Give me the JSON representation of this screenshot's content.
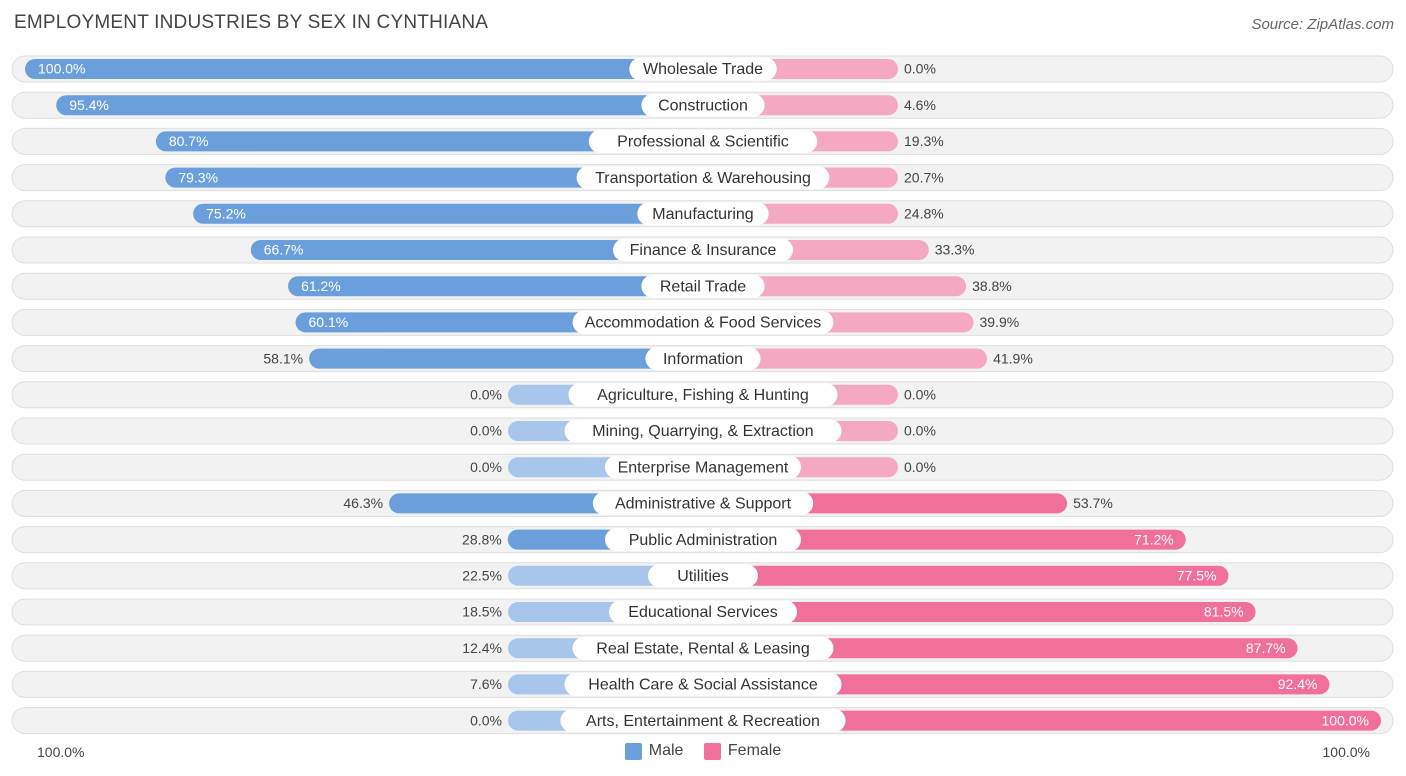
{
  "title": "EMPLOYMENT INDUSTRIES BY SEX IN CYNTHIANA",
  "source": "Source: ZipAtlas.com",
  "legend": {
    "male": "Male",
    "female": "Female"
  },
  "axis": {
    "left": "100.0%",
    "right": "100.0%"
  },
  "colors": {
    "male_strong": "#6a9fdc",
    "male_light": "#a8c6ec",
    "female_strong": "#f0709a",
    "female_light": "#f5a8c1",
    "track": "#f2f2f2",
    "track_border": "#dedede"
  },
  "chart_data": {
    "type": "bar",
    "orientation": "horizontal-diverging",
    "title": "EMPLOYMENT INDUSTRIES BY SEX IN CYNTHIANA",
    "xlim": [
      0,
      100
    ],
    "series_names": [
      "Male",
      "Female"
    ],
    "categories": [
      "Wholesale Trade",
      "Construction",
      "Professional & Scientific",
      "Transportation & Warehousing",
      "Manufacturing",
      "Finance & Insurance",
      "Retail Trade",
      "Accommodation & Food Services",
      "Information",
      "Agriculture, Fishing & Hunting",
      "Mining, Quarrying, & Extraction",
      "Enterprise Management",
      "Administrative & Support",
      "Public Administration",
      "Utilities",
      "Educational Services",
      "Real Estate, Rental & Leasing",
      "Health Care & Social Assistance",
      "Arts, Entertainment & Recreation"
    ],
    "male": [
      100.0,
      95.4,
      80.7,
      79.3,
      75.2,
      66.7,
      61.2,
      60.1,
      58.1,
      0.0,
      0.0,
      0.0,
      46.3,
      28.8,
      22.5,
      18.5,
      12.4,
      7.6,
      0.0
    ],
    "female": [
      0.0,
      4.6,
      19.3,
      20.7,
      24.8,
      33.3,
      38.8,
      39.9,
      41.9,
      0.0,
      0.0,
      0.0,
      53.7,
      71.2,
      77.5,
      81.5,
      87.7,
      92.4,
      100.0
    ],
    "male_labels": [
      "100.0%",
      "95.4%",
      "80.7%",
      "79.3%",
      "75.2%",
      "66.7%",
      "61.2%",
      "60.1%",
      "58.1%",
      "0.0%",
      "0.0%",
      "0.0%",
      "46.3%",
      "28.8%",
      "22.5%",
      "18.5%",
      "12.4%",
      "7.6%",
      "0.0%"
    ],
    "female_labels": [
      "0.0%",
      "4.6%",
      "19.3%",
      "20.7%",
      "24.8%",
      "33.3%",
      "38.8%",
      "39.9%",
      "41.9%",
      "0.0%",
      "0.0%",
      "0.0%",
      "53.7%",
      "71.2%",
      "77.5%",
      "81.5%",
      "87.7%",
      "92.4%",
      "100.0%"
    ]
  }
}
